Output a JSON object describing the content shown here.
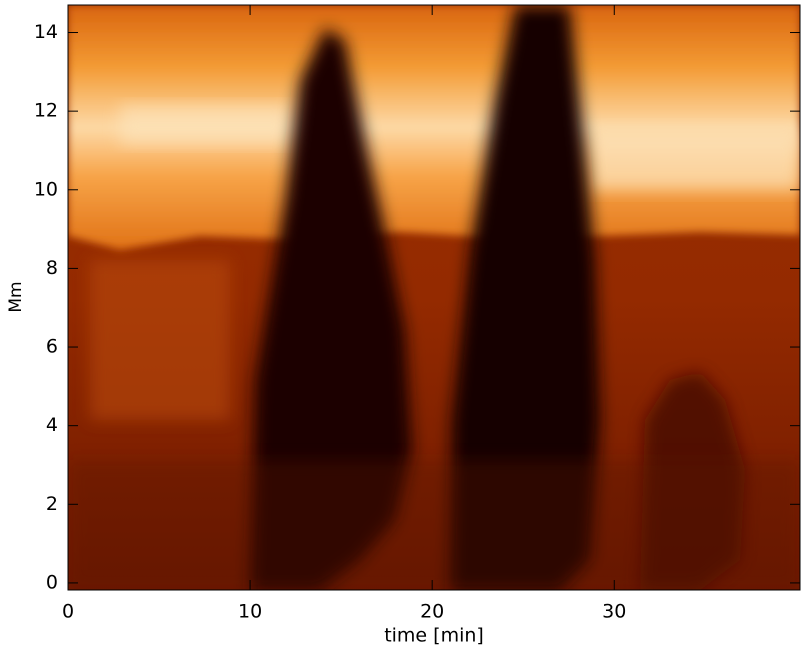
{
  "chart_data": {
    "type": "heatmap",
    "xlabel": "time [min]",
    "ylabel": "Mm",
    "xlim": [
      0,
      40.2
    ],
    "xticks": [
      0,
      10,
      20,
      30
    ],
    "ylim": [
      -0.18,
      14.7
    ],
    "yticks": [
      0,
      2,
      4,
      6,
      8,
      10,
      12,
      14
    ]
  }
}
